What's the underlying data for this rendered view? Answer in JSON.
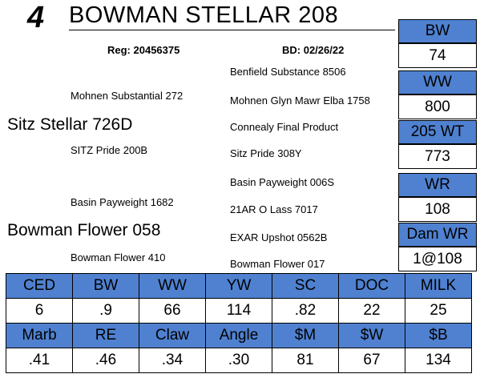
{
  "header": {
    "lot_number": "4",
    "animal_name": "BOWMAN STELLAR 208",
    "registration": "Reg: 20456375",
    "birth_date": "BD: 02/26/22"
  },
  "pedigree": {
    "sire": "Sitz Stellar 726D",
    "sire_sire": "Mohnen Substantial 272",
    "sire_dam": "SITZ Pride 200B",
    "sire_sire_sire": "Benfield Substance 8506",
    "sire_sire_dam": "Mohnen Glyn Mawr Elba 1758",
    "sire_dam_sire": "Connealy Final Product",
    "sire_dam_dam": "Sitz Pride 308Y",
    "dam": "Bowman Flower 058",
    "dam_sire": "Basin Payweight 1682",
    "dam_dam": "Bowman Flower 410",
    "dam_sire_sire": "Basin Payweight 006S",
    "dam_sire_dam": "21AR O Lass 7017",
    "dam_dam_sire": "EXAR Upshot 0562B",
    "dam_dam_dam": "Bowman Flower 017"
  },
  "performance": [
    {
      "label": "BW",
      "value": "74"
    },
    {
      "label": "WW",
      "value": "800"
    },
    {
      "label": "205 WT",
      "value": "773"
    },
    {
      "label": "WR",
      "value": "108"
    },
    {
      "label": "Dam WR",
      "value": "1@108"
    }
  ],
  "epds": {
    "row1_headers": [
      "CED",
      "BW",
      "WW",
      "YW",
      "SC",
      "DOC",
      "MILK"
    ],
    "row1_values": [
      "6",
      ".9",
      "66",
      "114",
      ".82",
      "22",
      "25"
    ],
    "row2_headers": [
      "Marb",
      "RE",
      "Claw",
      "Angle",
      "$M",
      "$W",
      "$B"
    ],
    "row2_values": [
      ".41",
      ".46",
      ".34",
      ".30",
      "81",
      "67",
      "134"
    ]
  },
  "colors": {
    "header_fill": "#4f81d0"
  }
}
